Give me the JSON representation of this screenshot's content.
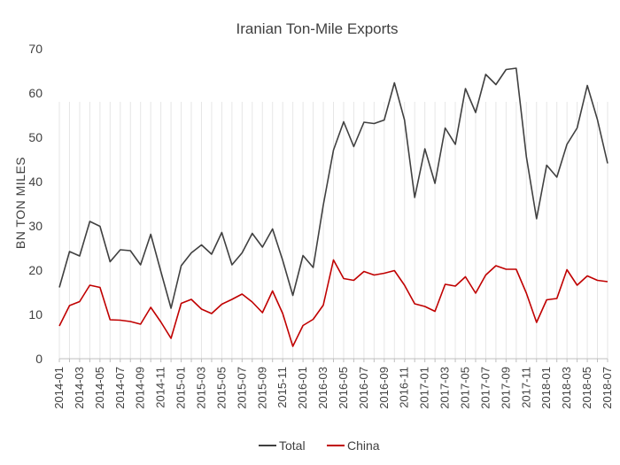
{
  "chart_data": {
    "type": "line",
    "title": "Iranian Ton-Mile Exports",
    "xlabel": "",
    "ylabel": "BN TON MILES",
    "ylim": [
      0,
      70
    ],
    "yticks": [
      0,
      10,
      20,
      30,
      40,
      50,
      60,
      70
    ],
    "grid": false,
    "legend_position": "bottom",
    "x": [
      "2014-01",
      "2014-02",
      "2014-03",
      "2014-04",
      "2014-05",
      "2014-06",
      "2014-07",
      "2014-08",
      "2014-09",
      "2014-10",
      "2014-11",
      "2014-12",
      "2015-01",
      "2015-02",
      "2015-03",
      "2015-04",
      "2015-05",
      "2015-06",
      "2015-07",
      "2015-08",
      "2015-09",
      "2015-10",
      "2015-11",
      "2015-12",
      "2016-01",
      "2016-02",
      "2016-03",
      "2016-04",
      "2016-05",
      "2016-06",
      "2016-07",
      "2016-08",
      "2016-09",
      "2016-10",
      "2016-11",
      "2016-12",
      "2017-01",
      "2017-02",
      "2017-03",
      "2017-04",
      "2017-05",
      "2017-06",
      "2017-07",
      "2017-08",
      "2017-09",
      "2017-10",
      "2017-11",
      "2017-12",
      "2018-01",
      "2018-02",
      "2018-03",
      "2018-04",
      "2018-05",
      "2018-06",
      "2018-07"
    ],
    "xtick_labels": [
      "2014-01",
      "2014-03",
      "2014-05",
      "2014-07",
      "2014-09",
      "2014-11",
      "2015-01",
      "2015-03",
      "2015-05",
      "2015-07",
      "2015-09",
      "2015-11",
      "2016-01",
      "2016-03",
      "2016-05",
      "2016-07",
      "2016-09",
      "2016-11",
      "2017-01",
      "2017-03",
      "2017-05",
      "2017-07",
      "2017-09",
      "2017-11",
      "2018-01",
      "2018-03",
      "2018-05",
      "2018-07"
    ],
    "series": [
      {
        "name": "Total",
        "color": "#404040",
        "values": [
          16.1,
          24.2,
          23.2,
          31.0,
          29.9,
          21.9,
          24.6,
          24.4,
          21.2,
          28.1,
          19.7,
          11.4,
          21.0,
          23.9,
          25.7,
          23.6,
          28.5,
          21.2,
          23.9,
          28.3,
          25.2,
          29.3,
          22.2,
          14.3,
          23.3,
          20.6,
          34.7,
          47.1,
          53.5,
          47.9,
          53.4,
          53.1,
          53.9,
          62.3,
          53.9,
          36.4,
          47.4,
          39.6,
          52.1,
          48.4,
          61.0,
          55.6,
          64.2,
          61.9,
          65.3,
          65.6,
          45.6,
          31.6,
          43.7,
          41.0,
          48.4,
          52.1,
          61.7,
          54.0,
          44.1
        ]
      },
      {
        "name": "China",
        "color": "#c00000",
        "values": [
          7.4,
          12.0,
          12.9,
          16.6,
          16.1,
          8.8,
          8.7,
          8.4,
          7.8,
          11.6,
          8.3,
          4.6,
          12.5,
          13.4,
          11.2,
          10.2,
          12.3,
          13.4,
          14.6,
          12.8,
          10.4,
          15.3,
          10.2,
          2.8,
          7.5,
          8.9,
          12.1,
          22.3,
          18.1,
          17.7,
          19.7,
          18.9,
          19.3,
          19.9,
          16.6,
          12.4,
          11.8,
          10.7,
          16.8,
          16.4,
          18.5,
          14.8,
          18.9,
          21.0,
          20.2,
          20.2,
          14.8,
          8.2,
          13.3,
          13.6,
          20.1,
          16.6,
          18.7,
          17.7,
          17.4
        ]
      }
    ]
  }
}
